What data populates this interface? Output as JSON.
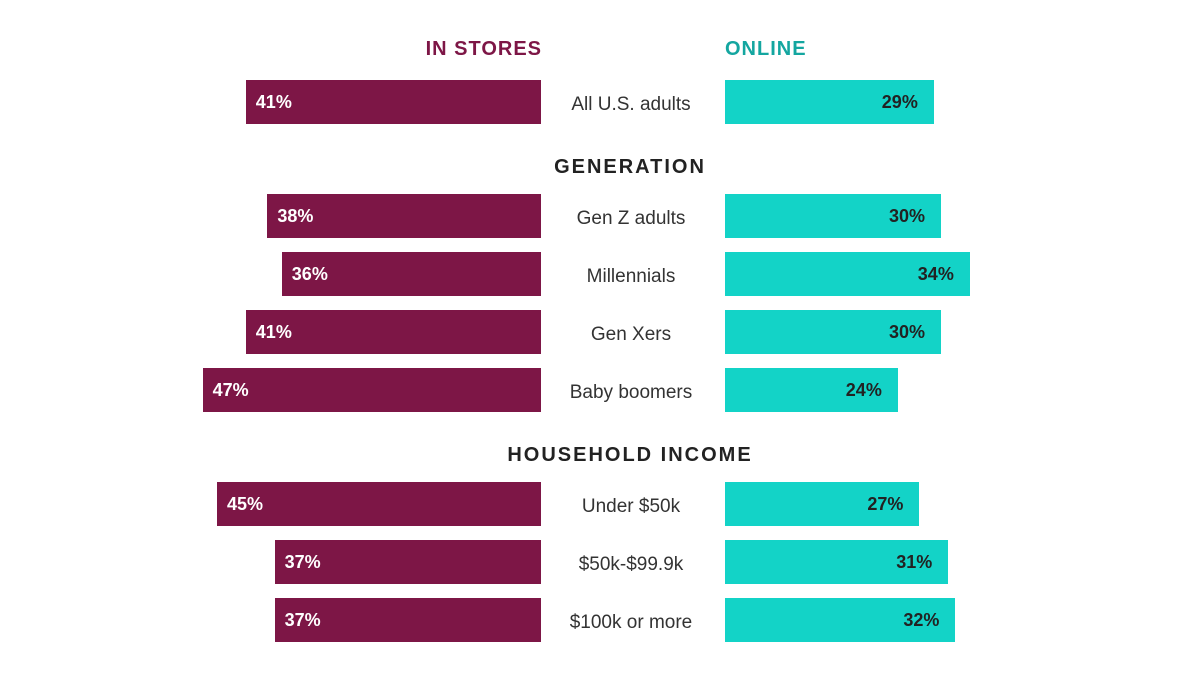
{
  "chart_data": {
    "type": "bar",
    "orientation": "horizontal-diverging",
    "legend": {
      "in_stores": "IN STORES",
      "online": "ONLINE"
    },
    "colors": {
      "in_stores": "#7d1646",
      "online": "#13d3c7",
      "in_stores_label": "#ffffff",
      "online_label": "#222222"
    },
    "sections": [
      {
        "title": "",
        "rows": [
          {
            "label": "All U.S. adults",
            "in_stores": 41,
            "online": 29
          }
        ]
      },
      {
        "title": "GENERATION",
        "rows": [
          {
            "label": "Gen Z adults",
            "in_stores": 38,
            "online": 30
          },
          {
            "label": "Millennials",
            "in_stores": 36,
            "online": 34
          },
          {
            "label": "Gen Xers",
            "in_stores": 41,
            "online": 30
          },
          {
            "label": "Baby boomers",
            "in_stores": 47,
            "online": 24
          }
        ]
      },
      {
        "title": "HOUSEHOLD INCOME",
        "rows": [
          {
            "label": "Under $50k",
            "in_stores": 45,
            "online": 27
          },
          {
            "label": "$50k-$99.9k",
            "in_stores": 37,
            "online": 31
          },
          {
            "label": "$100k or more",
            "in_stores": 37,
            "online": 32
          }
        ]
      }
    ],
    "value_suffix": "%"
  }
}
